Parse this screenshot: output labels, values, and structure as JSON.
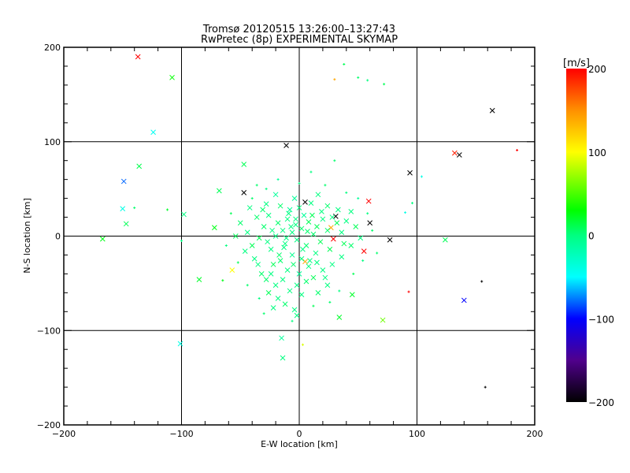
{
  "chart_data": {
    "type": "scatter",
    "title": "Tromsø 20120515 13:26:00–13:27:43",
    "subtitle": "RwPretec (8p) EXPERIMENTAL SKYMAP",
    "xlabel": "E-W location [km]",
    "ylabel": "N-S location [km]",
    "xlim": [
      -200,
      200
    ],
    "ylim": [
      -200,
      200
    ],
    "xticks": [
      -200,
      -100,
      0,
      100,
      200
    ],
    "yticks": [
      -200,
      -100,
      0,
      100,
      200
    ],
    "xtick_labels": [
      "−200",
      "−100",
      "0",
      "100",
      "200"
    ],
    "ytick_labels": [
      "−200",
      "−100",
      "0",
      "100",
      "200"
    ],
    "grid": [
      -100,
      0,
      100
    ],
    "colorbar": {
      "label": "[m/s]",
      "range": [
        -200,
        200
      ],
      "ticks": [
        200,
        100,
        0,
        -100,
        -200
      ],
      "tick_labels": [
        "200",
        "100",
        "0",
        "−100",
        "−200"
      ],
      "stops": [
        [
          -200,
          "#000000"
        ],
        [
          -150,
          "#50008c"
        ],
        [
          -100,
          "#0000ff"
        ],
        [
          -50,
          "#00ffff"
        ],
        [
          0,
          "#00ff80"
        ],
        [
          30,
          "#00ff00"
        ],
        [
          100,
          "#ffff00"
        ],
        [
          150,
          "#ff9000"
        ],
        [
          200,
          "#ff0000"
        ]
      ]
    },
    "point_fields": [
      "x_km",
      "y_km",
      "velocity_ms",
      "marker"
    ],
    "points": [
      [
        -137,
        190,
        200,
        "x"
      ],
      [
        -108,
        168,
        30,
        "x"
      ],
      [
        -124,
        110,
        -45,
        "x"
      ],
      [
        -136,
        74,
        12,
        "x"
      ],
      [
        -149,
        58,
        -80,
        "x"
      ],
      [
        -150,
        29,
        -40,
        "x"
      ],
      [
        -140,
        30,
        5,
        "p"
      ],
      [
        -147,
        13,
        10,
        "x"
      ],
      [
        -167,
        -3,
        25,
        "x"
      ],
      [
        -98,
        23,
        0,
        "x"
      ],
      [
        -68,
        48,
        10,
        "x"
      ],
      [
        -47,
        46,
        -200,
        "x"
      ],
      [
        -47,
        76,
        10,
        "x"
      ],
      [
        -11,
        96,
        -200,
        "x"
      ],
      [
        -72,
        9,
        25,
        "x"
      ],
      [
        -85,
        -46,
        20,
        "x"
      ],
      [
        -57,
        -36,
        100,
        "x"
      ],
      [
        -101,
        -114,
        -40,
        "x"
      ],
      [
        -15,
        -108,
        -10,
        "x"
      ],
      [
        -14,
        -129,
        0,
        "x"
      ],
      [
        3,
        -115,
        90,
        "p"
      ],
      [
        34,
        -86,
        20,
        "x"
      ],
      [
        45,
        -62,
        20,
        "x"
      ],
      [
        71,
        -89,
        60,
        "x"
      ],
      [
        94,
        67,
        -200,
        "x"
      ],
      [
        60,
        14,
        -200,
        "x"
      ],
      [
        59,
        37,
        200,
        "x"
      ],
      [
        77,
        -4,
        -200,
        "x"
      ],
      [
        55,
        -16,
        200,
        "x"
      ],
      [
        93,
        -59,
        200,
        "p"
      ],
      [
        155,
        -48,
        -200,
        "p"
      ],
      [
        140,
        -68,
        -100,
        "x"
      ],
      [
        124,
        -4,
        10,
        "x"
      ],
      [
        132,
        88,
        190,
        "x"
      ],
      [
        136,
        86,
        -200,
        "x"
      ],
      [
        164,
        133,
        -200,
        "x"
      ],
      [
        185,
        91,
        200,
        "p"
      ],
      [
        158,
        -160,
        -200,
        "p"
      ],
      [
        38,
        182,
        10,
        "p"
      ],
      [
        30,
        166,
        140,
        "p"
      ],
      [
        50,
        168,
        5,
        "p"
      ],
      [
        58,
        165,
        0,
        "p"
      ],
      [
        72,
        161,
        10,
        "p"
      ],
      [
        104,
        63,
        -40,
        "p"
      ],
      [
        31,
        21,
        -200,
        "x"
      ],
      [
        5,
        36,
        -200,
        "x"
      ],
      [
        27,
        9,
        140,
        "x"
      ],
      [
        29,
        -3,
        200,
        "x"
      ],
      [
        5,
        -27,
        140,
        "x"
      ],
      [
        -112,
        28,
        20,
        "p"
      ],
      [
        -100,
        -5,
        0,
        "p"
      ],
      [
        90,
        25,
        -40,
        "p"
      ],
      [
        96,
        35,
        0,
        "p"
      ],
      [
        30,
        80,
        5,
        "p"
      ],
      [
        -65,
        -47,
        25,
        "p"
      ],
      [
        -3,
        12,
        0,
        "x"
      ],
      [
        2,
        8,
        5,
        "x"
      ],
      [
        -6,
        4,
        0,
        "x"
      ],
      [
        8,
        15,
        10,
        "x"
      ],
      [
        -10,
        18,
        0,
        "x"
      ],
      [
        12,
        2,
        5,
        "x"
      ],
      [
        -14,
        6,
        0,
        "x"
      ],
      [
        4,
        22,
        -10,
        "x"
      ],
      [
        -2,
        -4,
        0,
        "x"
      ],
      [
        15,
        10,
        10,
        "x"
      ],
      [
        -18,
        14,
        5,
        "x"
      ],
      [
        20,
        18,
        0,
        "x"
      ],
      [
        -8,
        28,
        -10,
        "x"
      ],
      [
        6,
        -10,
        5,
        "x"
      ],
      [
        -12,
        -8,
        0,
        "x"
      ],
      [
        18,
        -6,
        10,
        "x"
      ],
      [
        -20,
        0,
        0,
        "x"
      ],
      [
        24,
        6,
        5,
        "x"
      ],
      [
        0,
        30,
        0,
        "x"
      ],
      [
        -4,
        40,
        -10,
        "x"
      ],
      [
        10,
        35,
        0,
        "x"
      ],
      [
        -16,
        32,
        5,
        "x"
      ],
      [
        28,
        20,
        0,
        "x"
      ],
      [
        -26,
        22,
        0,
        "x"
      ],
      [
        32,
        14,
        10,
        "x"
      ],
      [
        -30,
        10,
        5,
        "x"
      ],
      [
        36,
        4,
        0,
        "x"
      ],
      [
        -34,
        -2,
        10,
        "x"
      ],
      [
        40,
        16,
        0,
        "x"
      ],
      [
        -24,
        -14,
        0,
        "x"
      ],
      [
        14,
        -18,
        0,
        "x"
      ],
      [
        -6,
        -20,
        -5,
        "x"
      ],
      [
        2,
        -24,
        0,
        "x"
      ],
      [
        -16,
        -26,
        5,
        "x"
      ],
      [
        8,
        -32,
        0,
        "x"
      ],
      [
        -10,
        -36,
        0,
        "x"
      ],
      [
        -22,
        -30,
        10,
        "x"
      ],
      [
        0,
        -40,
        -10,
        "x"
      ],
      [
        -14,
        -46,
        0,
        "x"
      ],
      [
        6,
        -48,
        5,
        "x"
      ],
      [
        -20,
        -52,
        0,
        "x"
      ],
      [
        -8,
        -58,
        0,
        "x"
      ],
      [
        -26,
        -60,
        10,
        "x"
      ],
      [
        2,
        -62,
        0,
        "x"
      ],
      [
        -18,
        -66,
        0,
        "x"
      ],
      [
        -12,
        -72,
        5,
        "x"
      ],
      [
        -4,
        -78,
        0,
        "x"
      ],
      [
        -22,
        -76,
        0,
        "x"
      ],
      [
        -2,
        -84,
        0,
        "x"
      ],
      [
        16,
        -60,
        5,
        "x"
      ],
      [
        24,
        -52,
        0,
        "x"
      ],
      [
        12,
        -44,
        10,
        "x"
      ],
      [
        20,
        -36,
        0,
        "x"
      ],
      [
        -32,
        -40,
        5,
        "x"
      ],
      [
        -38,
        -24,
        0,
        "x"
      ],
      [
        -40,
        -10,
        10,
        "x"
      ],
      [
        -44,
        4,
        0,
        "x"
      ],
      [
        -36,
        20,
        5,
        "x"
      ],
      [
        -28,
        34,
        0,
        "x"
      ],
      [
        -20,
        44,
        -10,
        "x"
      ],
      [
        16,
        44,
        0,
        "x"
      ],
      [
        24,
        32,
        5,
        "x"
      ],
      [
        44,
        26,
        0,
        "x"
      ],
      [
        48,
        10,
        10,
        "x"
      ],
      [
        52,
        -2,
        0,
        "x"
      ],
      [
        44,
        -10,
        5,
        "x"
      ],
      [
        36,
        -22,
        0,
        "x"
      ],
      [
        28,
        -30,
        0,
        "x"
      ],
      [
        -46,
        -16,
        0,
        "x"
      ],
      [
        -50,
        14,
        5,
        "x"
      ],
      [
        -54,
        0,
        10,
        "x"
      ],
      [
        -42,
        30,
        0,
        "x"
      ],
      [
        -7,
        10,
        0,
        "x"
      ],
      [
        7,
        5,
        5,
        "x"
      ],
      [
        -3,
        18,
        0,
        "x"
      ],
      [
        11,
        22,
        10,
        "x"
      ],
      [
        -11,
        -2,
        0,
        "x"
      ],
      [
        3,
        -14,
        0,
        "x"
      ],
      [
        -17,
        -20,
        5,
        "x"
      ],
      [
        19,
        26,
        0,
        "x"
      ],
      [
        -23,
        6,
        0,
        "x"
      ],
      [
        26,
        -14,
        10,
        "x"
      ],
      [
        -27,
        -6,
        0,
        "x"
      ],
      [
        9,
        -26,
        0,
        "x"
      ],
      [
        -5,
        -30,
        5,
        "x"
      ],
      [
        -13,
        -12,
        0,
        "x"
      ],
      [
        15,
        -28,
        0,
        "x"
      ],
      [
        -9,
        24,
        0,
        "x"
      ],
      [
        33,
        28,
        0,
        "x"
      ],
      [
        -31,
        28,
        5,
        "x"
      ],
      [
        38,
        -8,
        10,
        "x"
      ],
      [
        -35,
        -30,
        0,
        "x"
      ],
      [
        22,
        -44,
        0,
        "x"
      ],
      [
        -28,
        -46,
        5,
        "x"
      ],
      [
        -2,
        -52,
        0,
        "x"
      ],
      [
        -24,
        -40,
        0,
        "x"
      ],
      [
        -40,
        40,
        5,
        "p"
      ],
      [
        -58,
        24,
        10,
        "p"
      ],
      [
        -62,
        -10,
        0,
        "p"
      ],
      [
        -52,
        -28,
        10,
        "p"
      ],
      [
        -44,
        -52,
        5,
        "p"
      ],
      [
        -34,
        -66,
        0,
        "p"
      ],
      [
        -30,
        -82,
        5,
        "p"
      ],
      [
        -6,
        -90,
        0,
        "p"
      ],
      [
        12,
        -74,
        10,
        "p"
      ],
      [
        26,
        -70,
        5,
        "p"
      ],
      [
        34,
        -58,
        0,
        "p"
      ],
      [
        46,
        -40,
        10,
        "p"
      ],
      [
        54,
        -26,
        0,
        "p"
      ],
      [
        62,
        6,
        5,
        "p"
      ],
      [
        58,
        24,
        0,
        "p"
      ],
      [
        50,
        40,
        -10,
        "p"
      ],
      [
        40,
        46,
        0,
        "p"
      ],
      [
        22,
        54,
        5,
        "p"
      ],
      [
        0,
        56,
        0,
        "p"
      ],
      [
        -18,
        60,
        -10,
        "p"
      ],
      [
        -36,
        54,
        5,
        "p"
      ],
      [
        10,
        68,
        0,
        "p"
      ],
      [
        -28,
        50,
        0,
        "p"
      ],
      [
        66,
        -18,
        5,
        "p"
      ]
    ]
  }
}
